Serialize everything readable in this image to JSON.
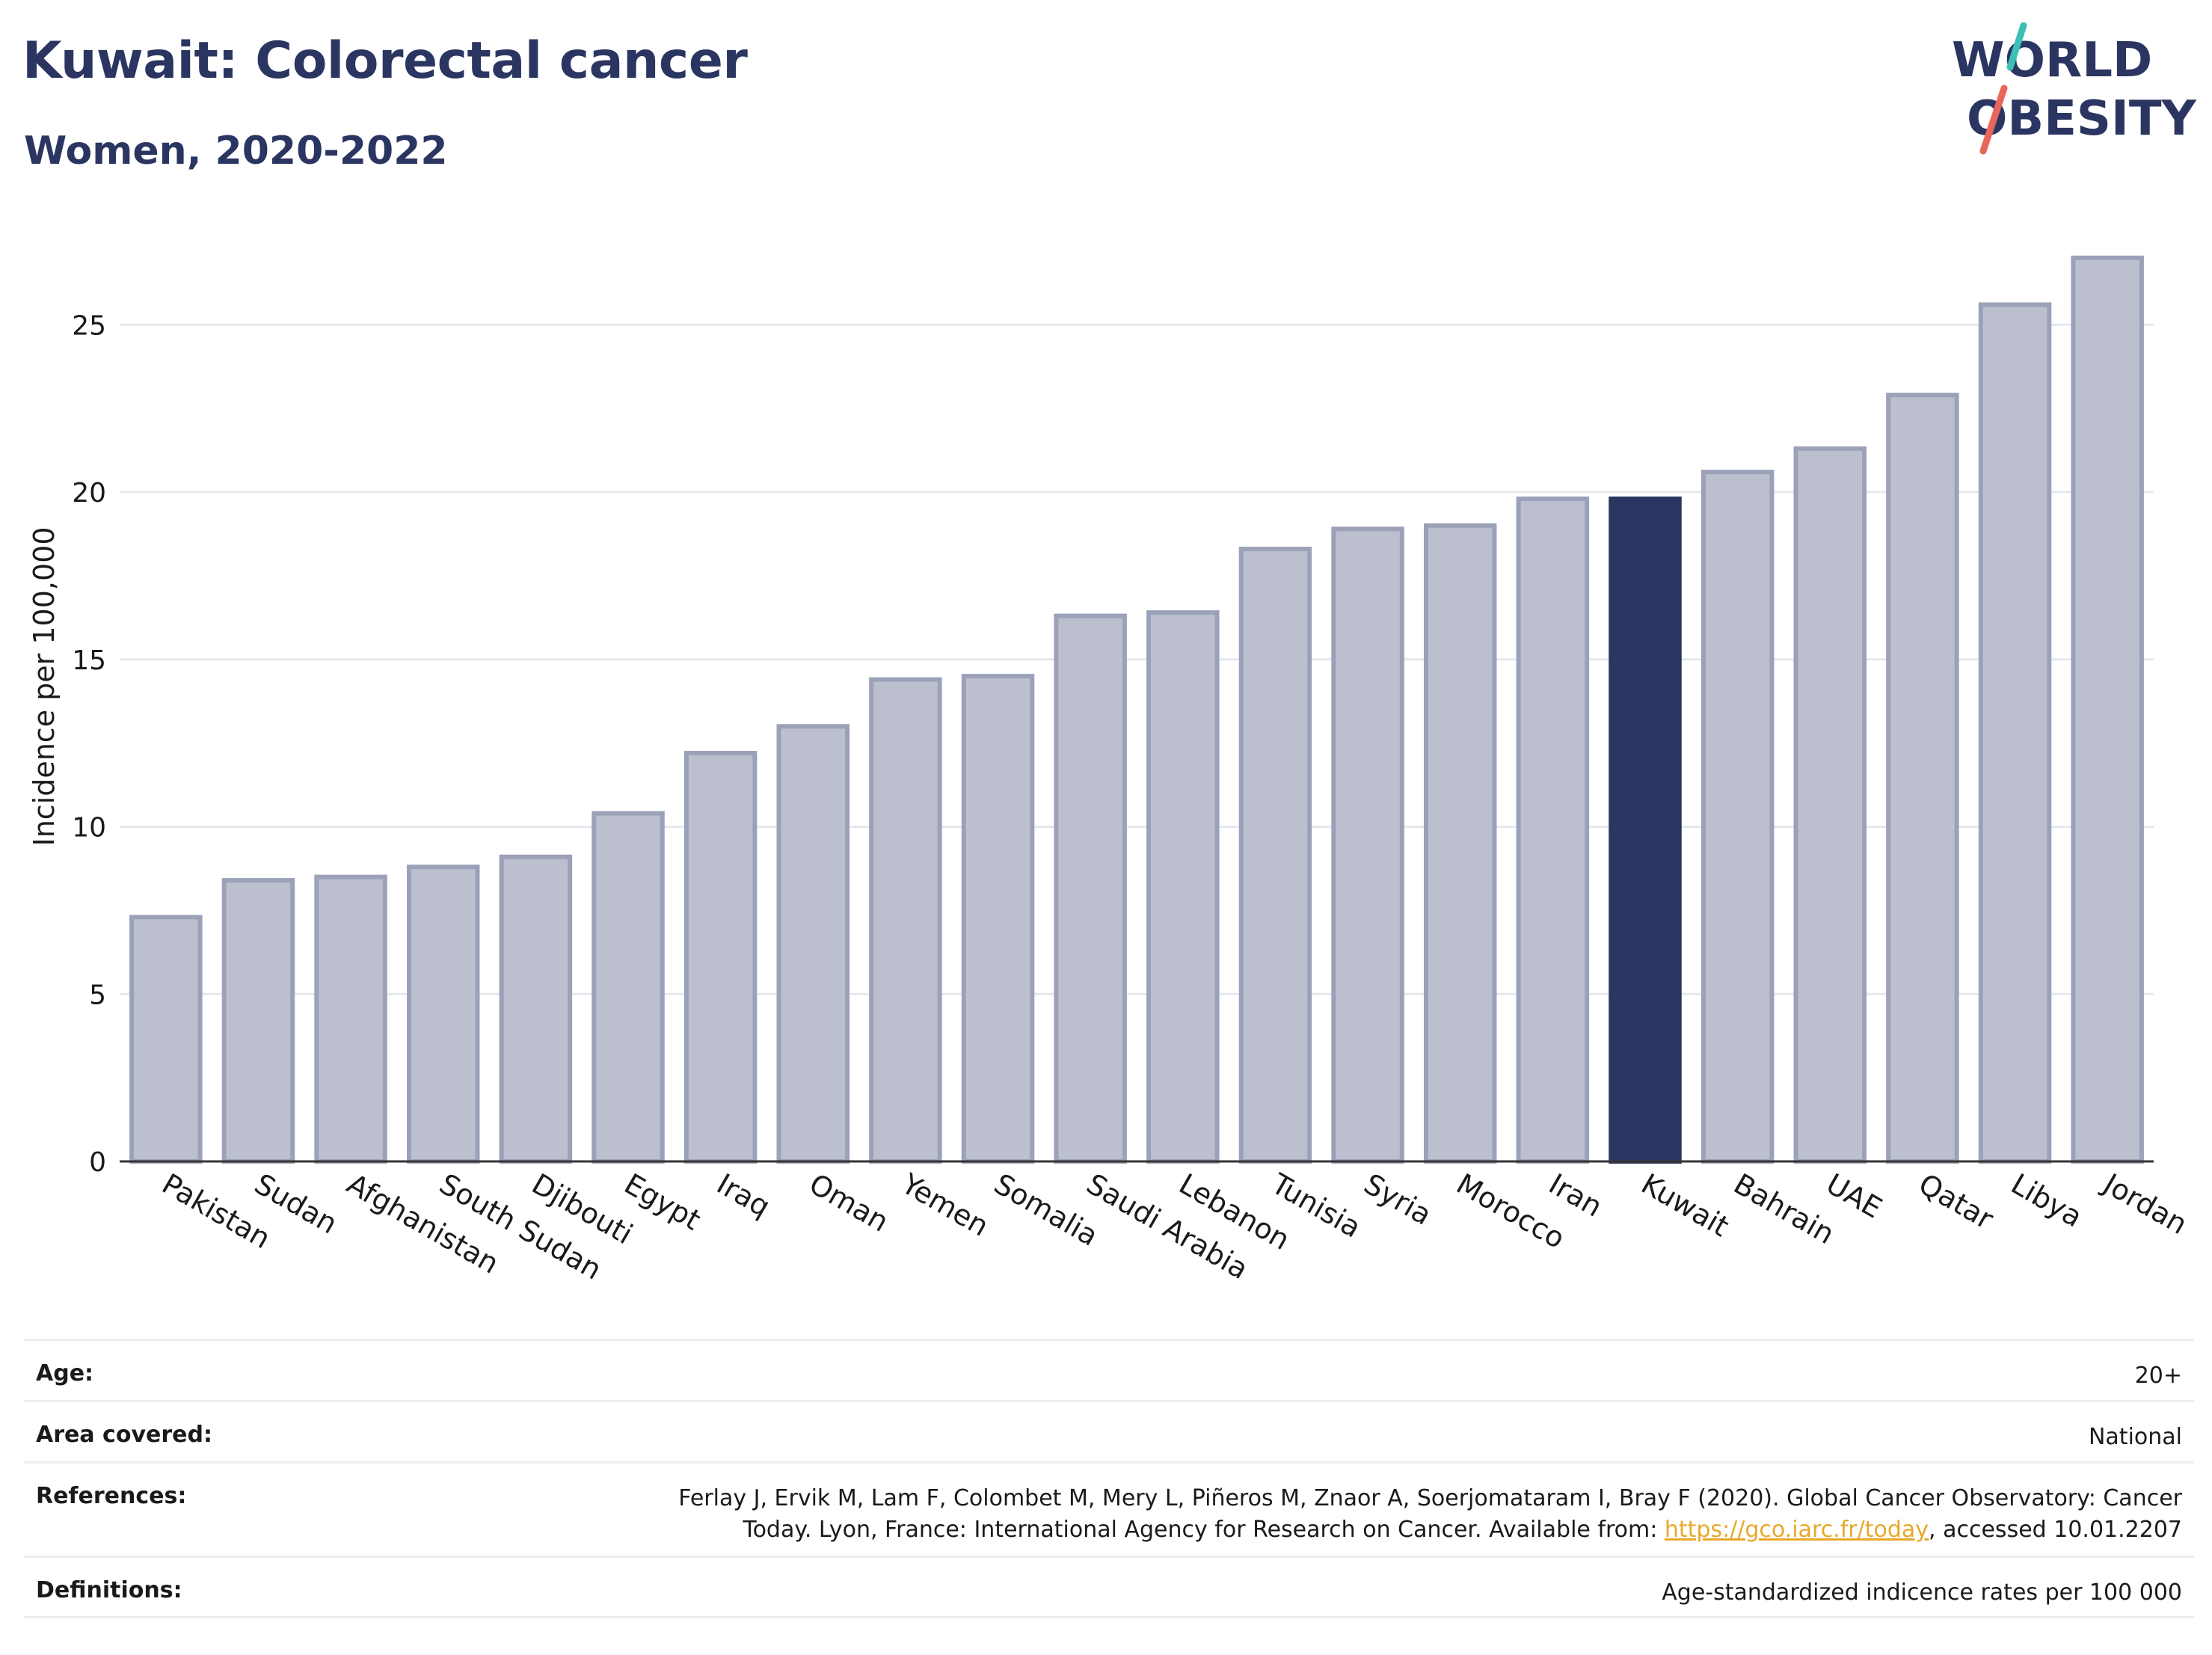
{
  "header": {
    "title": "Kuwait: Colorectal cancer",
    "subtitle": "Women, 2020-2022"
  },
  "logo": {
    "line1": "WORLD",
    "line2": "OBESITY",
    "slash_colors": [
      "#3cbfb4",
      "#e8665a"
    ],
    "text_color": "#2b3561"
  },
  "colors": {
    "highlight_bar": "#2b3561",
    "other_bar_fill": "#bcc0ce",
    "other_bar_stroke": "#9ba1b8",
    "grid": "#e6e8ee",
    "axis": "#333333"
  },
  "chart_data": {
    "type": "bar",
    "ylabel": "Incidence per 100,000",
    "xlabel": "",
    "ylim": [
      0,
      28
    ],
    "yticks": [
      0,
      5,
      10,
      15,
      20,
      25
    ],
    "grid": true,
    "highlight": "Kuwait",
    "categories": [
      "Pakistan",
      "Sudan",
      "Afghanistan",
      "South Sudan",
      "Djibouti",
      "Egypt",
      "Iraq",
      "Oman",
      "Yemen",
      "Somalia",
      "Saudi Arabia",
      "Lebanon",
      "Tunisia",
      "Syria",
      "Morocco",
      "Iran",
      "Kuwait",
      "Bahrain",
      "UAE",
      "Qatar",
      "Libya",
      "Jordan"
    ],
    "values": [
      7.3,
      8.4,
      8.5,
      8.8,
      9.1,
      10.4,
      12.2,
      13.0,
      14.4,
      14.5,
      16.3,
      16.4,
      18.3,
      18.9,
      19.0,
      19.8,
      19.8,
      20.6,
      21.3,
      22.9,
      25.6,
      27.0
    ]
  },
  "info": {
    "age_label": "Age:",
    "age_value": "20+",
    "area_label": "Area covered:",
    "area_value": "National",
    "references_label": "References:",
    "references_line1": "Ferlay J, Ervik M, Lam F, Colombet M, Mery L, Piñeros M, Znaor A, Soerjomataram I, Bray F (2020). Global Cancer Observatory: Cancer",
    "references_line2_pre": "Today. Lyon, France: International Agency for Research on Cancer. Available from: ",
    "references_link": "https://gco.iarc.fr/today",
    "references_line2_post": ", accessed 10.01.2207",
    "definitions_label": "Definitions:",
    "definitions_value": "Age-standardized indicence rates per 100 000"
  }
}
